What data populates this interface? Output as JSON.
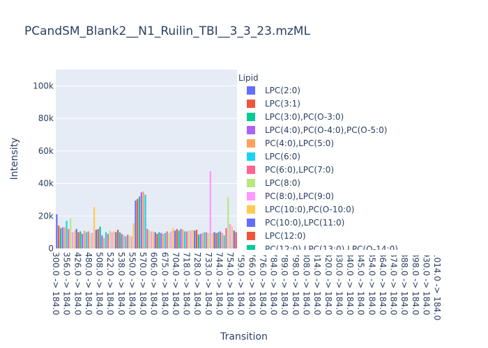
{
  "chart_data": {
    "type": "bar",
    "title": "PCandSM_Blank2__N1_Ruilin_TBI__3_3_23.mzML",
    "xlabel": "Transition",
    "ylabel": "Intensity",
    "ylim": [
      0,
      110000
    ],
    "y_ticks": [
      0,
      20000,
      40000,
      60000,
      80000,
      100000
    ],
    "y_tick_labels": [
      "0",
      "20k",
      "40k",
      "60k",
      "80k",
      "100k"
    ],
    "grid": true,
    "legend": {
      "title": "Lipid",
      "placement": "right"
    },
    "x_tick_labels": [
      "300.0 -> 184.0",
      "356.0 -> 184.0",
      "426.0 -> 184.0",
      "480.0 -> 184.0",
      "508.0 -> 184.0",
      "522.0 -> 184.0",
      "538.0 -> 184.0",
      "550.0 -> 184.0",
      "570.0 -> 184.0",
      "606.0 -> 184.0",
      "675.0 -> 184.0",
      "704.0 -> 184.0",
      "718.0 -> 184.0",
      "728.0 -> 184.0",
      "733.0 -> 184.0",
      "744.0 -> 184.0",
      "754.0 -> 184.0",
      "759.0 -> 184.0",
      "766.0 -> 184.0",
      "776.0 -> 184.0",
      "784.0 -> 184.0",
      "789.0 -> 184.0",
      "798.0 -> 184.0",
      "808.0 -> 184.0",
      "814.0 -> 184.0",
      "820.0 -> 184.0",
      "830.0 -> 184.0",
      "840.0 -> 184.0",
      "845.0 -> 184.0",
      "854.0 -> 184.0",
      "864.0 -> 184.0",
      "874.0 -> 184.0",
      "888.0 -> 184.0",
      "898.0 -> 184.0",
      "930.0 -> 184.0",
      "1014.0 -> 184.0"
    ],
    "palette": [
      "#636efa",
      "#EF553B",
      "#00cc96",
      "#ab63fa",
      "#FFA15A",
      "#19d3f3",
      "#FF6692",
      "#B6E880",
      "#FF97FF",
      "#FECB52"
    ],
    "series": [
      {
        "name": "LPC(2:0)",
        "color": "#636efa"
      },
      {
        "name": "LPC(3:1)",
        "color": "#EF553B"
      },
      {
        "name": "LPC(3:0),PC(O-3:0)",
        "color": "#00cc96"
      },
      {
        "name": "LPC(4:0),PC(O-4:0),PC(O-5:0)",
        "color": "#ab63fa"
      },
      {
        "name": "PC(4:0),LPC(5:0)",
        "color": "#FFA15A"
      },
      {
        "name": "LPC(6:0)",
        "color": "#19d3f3"
      },
      {
        "name": "PC(6:0),LPC(7:0)",
        "color": "#FF6692"
      },
      {
        "name": "LPC(8:0)",
        "color": "#B6E880"
      },
      {
        "name": "PC(8:0),LPC(9:0)",
        "color": "#FF97FF"
      },
      {
        "name": "LPC(10:0),PC(O-10:0)",
        "color": "#FECB52"
      },
      {
        "name": "PC(10:0),LPC(11:0)",
        "color": "#636efa"
      },
      {
        "name": "LPC(12:0)",
        "color": "#EF553B"
      },
      {
        "name": "PC(12:0),LPC(13:0),LPC(O-14:0)",
        "color": "#00cc96"
      }
    ],
    "bar_values": [
      21000,
      14000,
      12500,
      13000,
      13000,
      17000,
      12000,
      18500,
      10000,
      11000,
      12000,
      10000,
      10500,
      9000,
      11000,
      10000,
      10500,
      9500,
      9500,
      25500,
      11500,
      12000,
      13500,
      8000,
      6500,
      10000,
      9000,
      11000,
      10000,
      10500,
      10000,
      11500,
      10000,
      9000,
      8000,
      7500,
      8500,
      8000,
      7500,
      15500,
      29500,
      30500,
      32000,
      34500,
      35000,
      33000,
      12000,
      11000,
      10500,
      10500,
      10000,
      9000,
      10000,
      9500,
      9000,
      9500,
      10500,
      9500,
      10500,
      12500,
      11000,
      12000,
      11000,
      12000,
      11500,
      10500,
      10500,
      11000,
      11000,
      11500,
      11000,
      11500,
      8500,
      9000,
      9500,
      10000,
      10000,
      9500,
      47500,
      9500,
      10000,
      9500,
      10000,
      10500,
      9500,
      8000,
      12500,
      31500,
      15000,
      13500,
      11000,
      10000
    ]
  }
}
